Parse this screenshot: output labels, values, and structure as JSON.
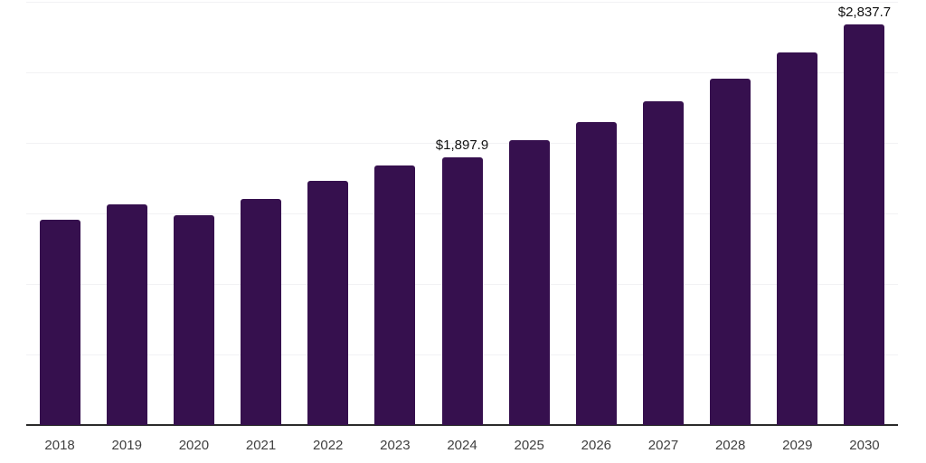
{
  "chart_data": {
    "type": "bar",
    "title": "",
    "xlabel": "",
    "ylabel": "",
    "categories": [
      "2018",
      "2019",
      "2020",
      "2021",
      "2022",
      "2023",
      "2024",
      "2025",
      "2026",
      "2027",
      "2028",
      "2029",
      "2030"
    ],
    "values": [
      1456,
      1565,
      1485,
      1602,
      1730,
      1838,
      1897.9,
      2019,
      2150,
      2295,
      2456,
      2638,
      2837.7
    ],
    "value_labels": [
      "",
      "",
      "",
      "",
      "",
      "",
      "$1,897.9",
      "",
      "",
      "",
      "",
      "",
      "$2,837.7"
    ],
    "ylim": [
      0,
      3000
    ],
    "gridline_interval": 500,
    "grid": "horizontal",
    "legend": "none"
  },
  "colors": {
    "background": "#ffffff",
    "bar": "#36104E",
    "gridline": "#f2f2f4",
    "axis_line": "#2a2a2a",
    "tick_label": "#404040",
    "value_label": "#111111"
  }
}
